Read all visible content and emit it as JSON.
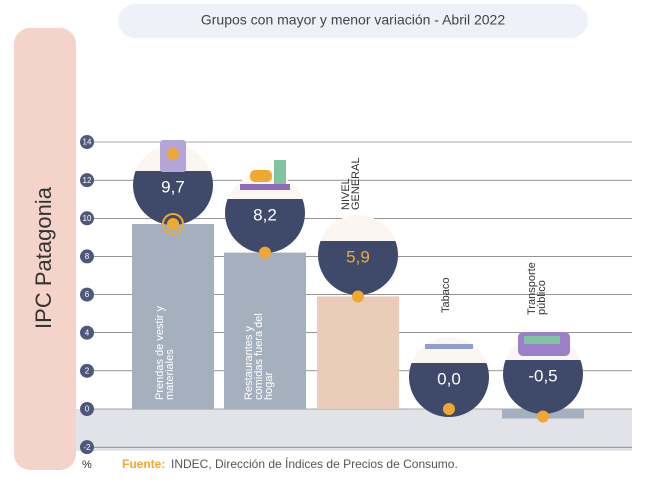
{
  "chart_data": {
    "type": "bar",
    "title": "Grupos con mayor y menor variación - Abril 2022",
    "side_label": "IPC Patagonia",
    "unit_label": "%",
    "source_label": "Fuente:",
    "source_text": "INDEC, Dirección de Índices de Precios de Consumo.",
    "categories": [
      "Prendas de vestir y materiales",
      "Restaurantes y comidas fuera del hogar",
      "NIVEL GENERAL",
      "Tabaco",
      "Transporte público"
    ],
    "values": [
      9.7,
      8.2,
      5.9,
      0.0,
      -0.5
    ],
    "value_labels": [
      "9,7",
      "8,2",
      "5,9",
      "0,0",
      "-0,5"
    ],
    "colors": [
      "#a5b0bf",
      "#a5b0bf",
      "#ebcbba",
      "#a5b0bf",
      "#a5b0bf"
    ],
    "ylim": [
      -2.2,
      14
    ],
    "yticks": [
      -2,
      0,
      2,
      4,
      6,
      8,
      10,
      12,
      14
    ],
    "grid": true
  }
}
